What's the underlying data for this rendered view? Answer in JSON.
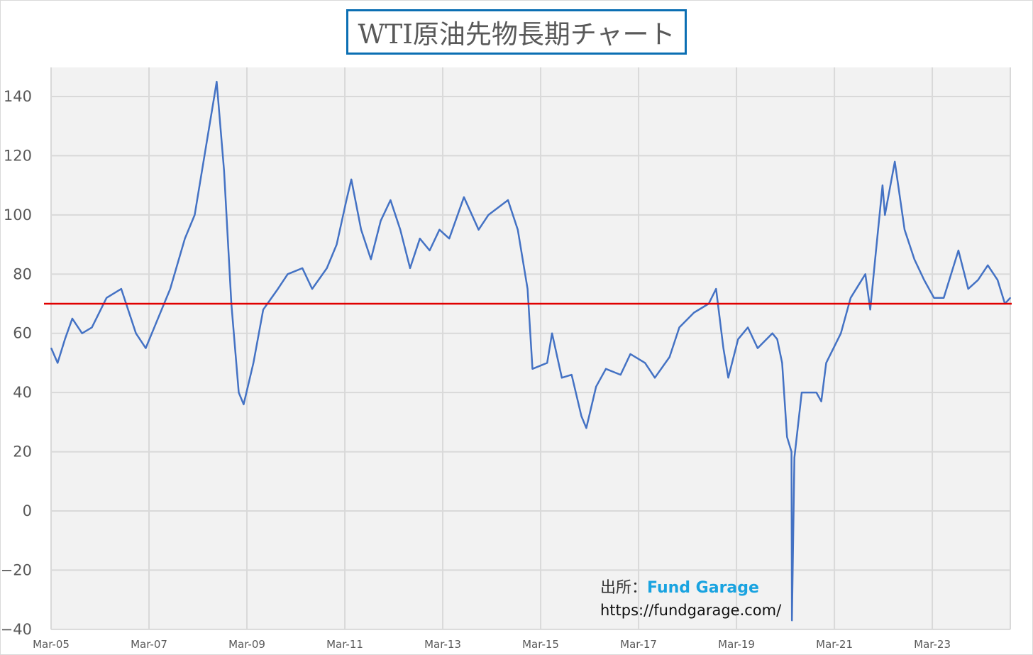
{
  "chart_data": {
    "type": "line",
    "title": "WTI原油先物長期チャート",
    "xlabel": "",
    "ylabel": "",
    "xlim": [
      2005.167,
      2024.76
    ],
    "ylim": [
      -40,
      150
    ],
    "yticks": [
      140,
      120,
      100,
      80,
      60,
      40,
      20,
      0,
      -20,
      -40
    ],
    "negative_tick_color": "#e00000",
    "xticks": [
      {
        "t": 2005.167,
        "label": "Mar-05"
      },
      {
        "t": 2007.167,
        "label": "Mar-07"
      },
      {
        "t": 2009.167,
        "label": "Mar-09"
      },
      {
        "t": 2011.167,
        "label": "Mar-11"
      },
      {
        "t": 2013.167,
        "label": "Mar-13"
      },
      {
        "t": 2015.167,
        "label": "Mar-15"
      },
      {
        "t": 2017.167,
        "label": "Mar-17"
      },
      {
        "t": 2019.167,
        "label": "Mar-19"
      },
      {
        "t": 2021.167,
        "label": "Mar-21"
      },
      {
        "t": 2023.167,
        "label": "Mar-23"
      }
    ],
    "grid": true,
    "line_color": "#4472c4",
    "reference_line": {
      "value": 70,
      "color": "#e00000"
    },
    "series": [
      {
        "name": "WTI",
        "x": [
          2005.17,
          2005.3,
          2005.45,
          2005.6,
          2005.8,
          2006.0,
          2006.3,
          2006.6,
          2006.9,
          2007.1,
          2007.3,
          2007.6,
          2007.9,
          2008.1,
          2008.3,
          2008.5,
          2008.55,
          2008.7,
          2008.85,
          2009.0,
          2009.1,
          2009.3,
          2009.5,
          2009.8,
          2010.0,
          2010.3,
          2010.5,
          2010.8,
          2011.0,
          2011.2,
          2011.3,
          2011.5,
          2011.7,
          2011.9,
          2012.1,
          2012.3,
          2012.5,
          2012.7,
          2012.9,
          2013.1,
          2013.3,
          2013.6,
          2013.9,
          2014.1,
          2014.5,
          2014.7,
          2014.9,
          2015.0,
          2015.3,
          2015.4,
          2015.6,
          2015.8,
          2016.0,
          2016.1,
          2016.3,
          2016.5,
          2016.8,
          2017.0,
          2017.3,
          2017.5,
          2017.8,
          2018.0,
          2018.3,
          2018.6,
          2018.75,
          2018.9,
          2019.0,
          2019.2,
          2019.4,
          2019.6,
          2019.9,
          2020.0,
          2020.1,
          2020.2,
          2020.29,
          2020.3,
          2020.35,
          2020.5,
          2020.8,
          2020.9,
          2021.0,
          2021.3,
          2021.5,
          2021.8,
          2021.9,
          2022.0,
          2022.15,
          2022.2,
          2022.4,
          2022.6,
          2022.8,
          2023.0,
          2023.2,
          2023.4,
          2023.7,
          2023.9,
          2024.1,
          2024.3,
          2024.5,
          2024.65,
          2024.76
        ],
        "values": [
          55,
          50,
          58,
          65,
          60,
          62,
          72,
          75,
          60,
          55,
          63,
          75,
          92,
          100,
          120,
          140,
          145,
          115,
          70,
          40,
          36,
          50,
          68,
          75,
          80,
          82,
          75,
          82,
          90,
          105,
          112,
          95,
          85,
          98,
          105,
          95,
          82,
          92,
          88,
          95,
          92,
          106,
          95,
          100,
          105,
          95,
          75,
          48,
          50,
          60,
          45,
          46,
          32,
          28,
          42,
          48,
          46,
          53,
          50,
          45,
          52,
          62,
          67,
          70,
          75,
          55,
          45,
          58,
          62,
          55,
          60,
          58,
          50,
          25,
          20,
          -37,
          18,
          40,
          40,
          37,
          50,
          60,
          72,
          80,
          68,
          85,
          110,
          100,
          118,
          95,
          85,
          78,
          72,
          72,
          88,
          75,
          78,
          83,
          78,
          70,
          72
        ]
      }
    ]
  },
  "source": {
    "label": "出所：",
    "brand": "Fund Garage",
    "url": "https://fundgarage.com/"
  }
}
